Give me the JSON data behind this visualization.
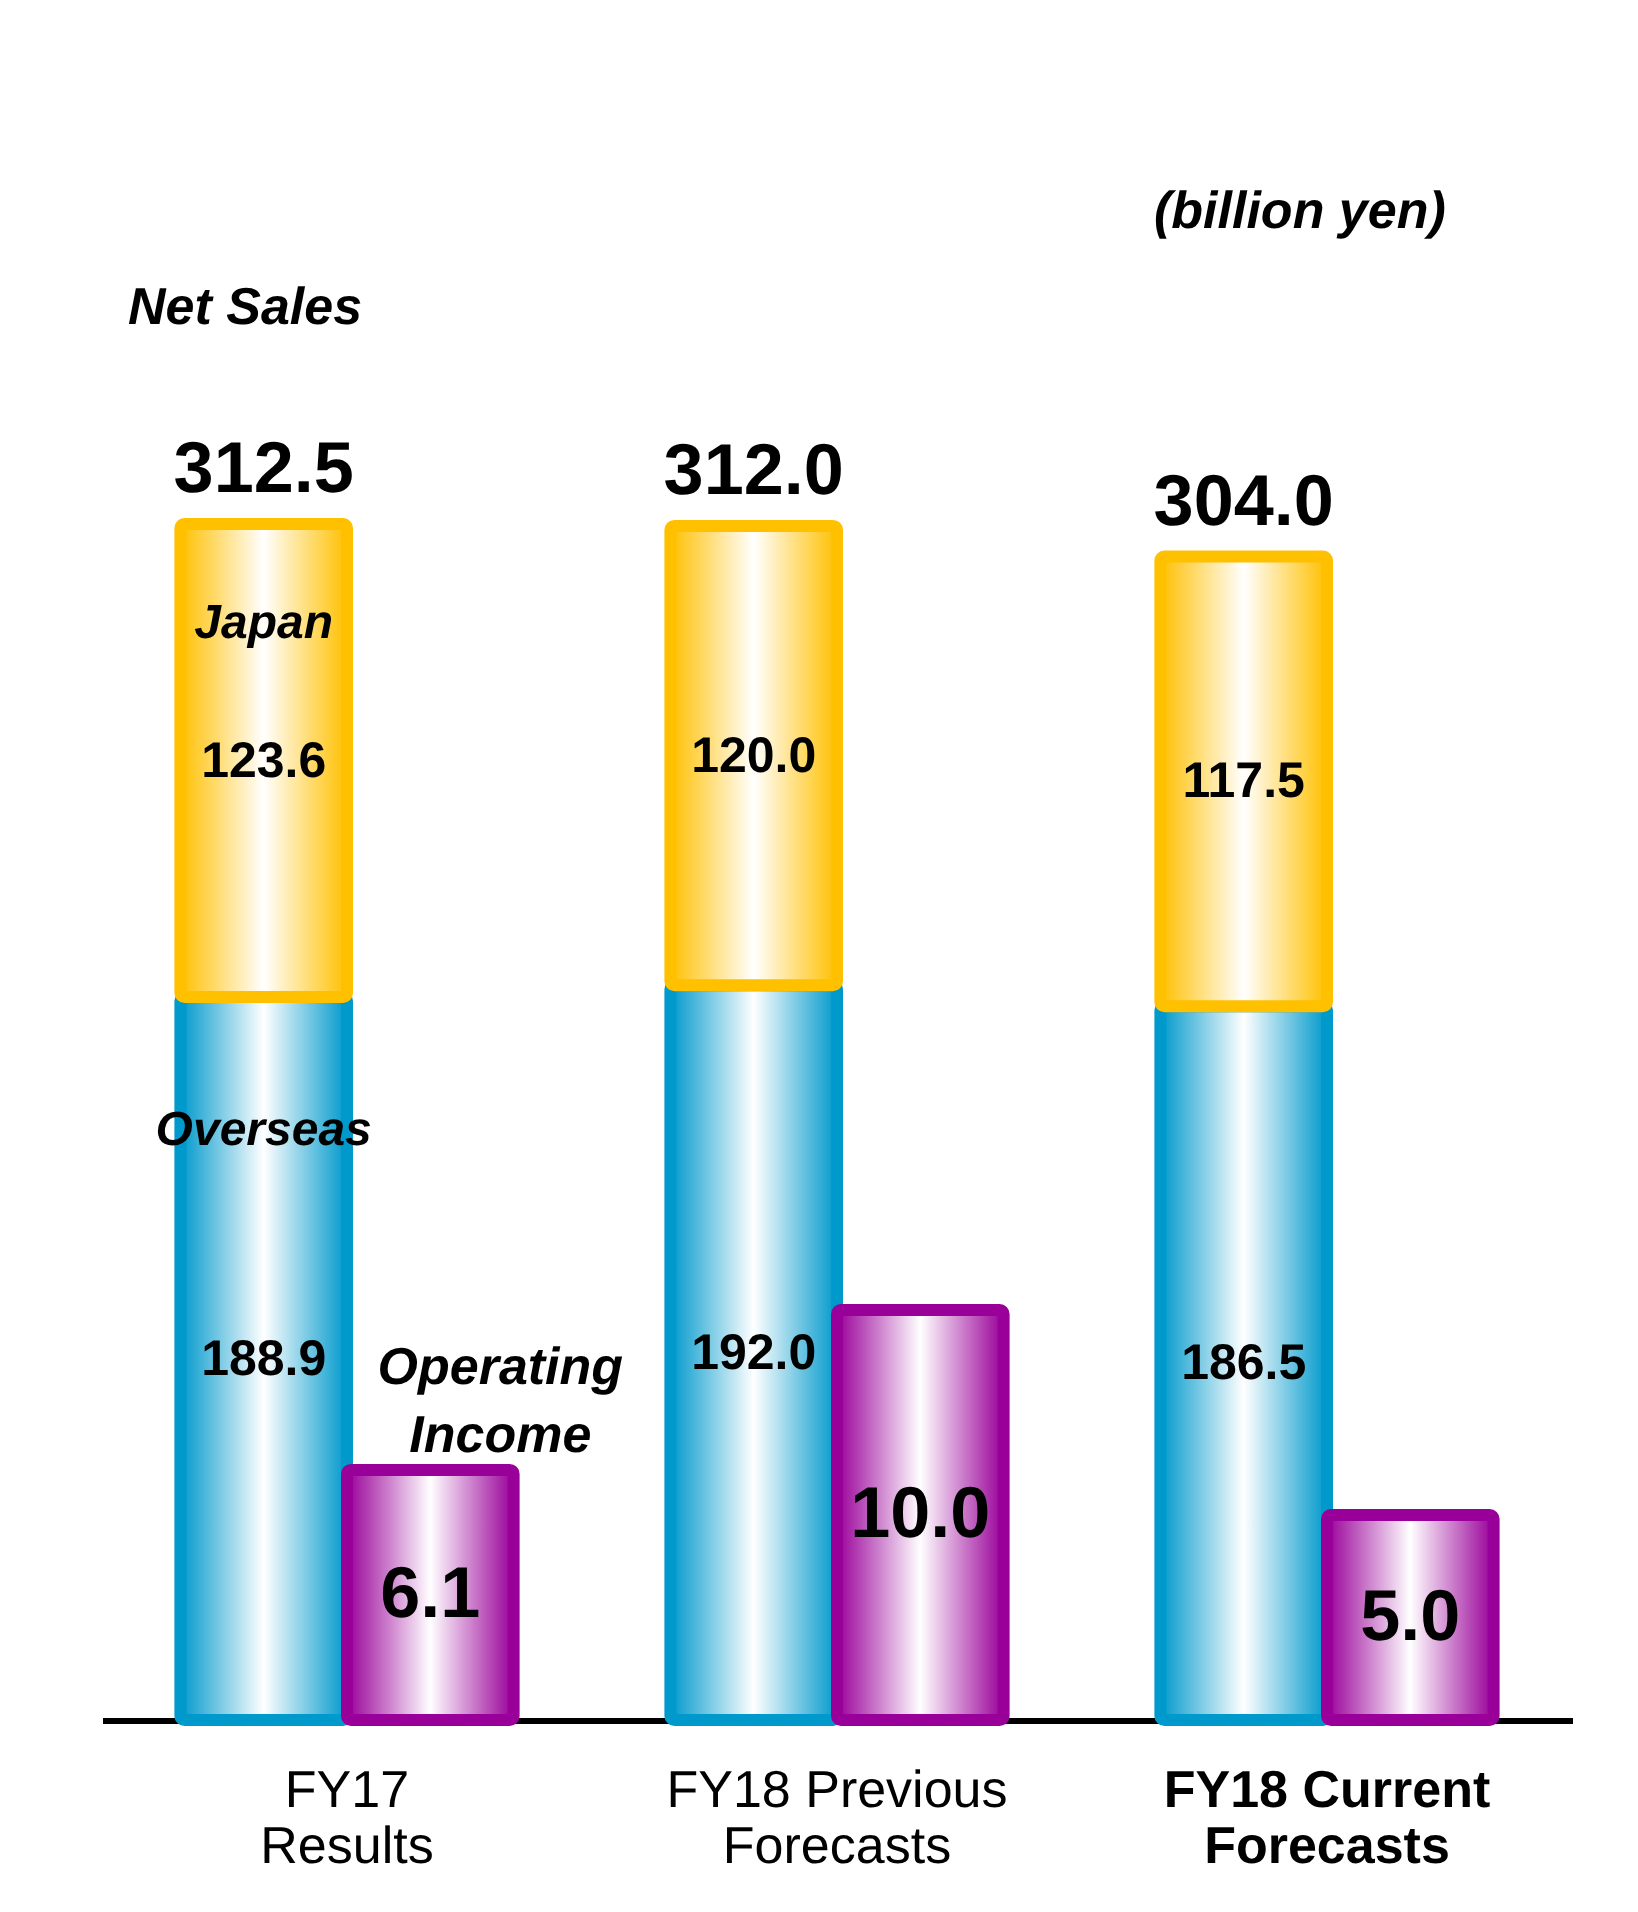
{
  "chart_data": {
    "type": "bar",
    "stacked": true,
    "categories": [
      "FY17 Results",
      "FY18 Previous Forecasts",
      "FY18 Current Forecasts"
    ],
    "series": [
      {
        "name": "Overseas",
        "color": "#0099cc",
        "values": [
          188.9,
          192.0,
          186.5
        ],
        "value_labels": [
          "188.9",
          "192.0",
          "186.5"
        ]
      },
      {
        "name": "Japan",
        "color": "#ffc000",
        "values": [
          123.6,
          120.0,
          117.5
        ],
        "value_labels": [
          "123.6",
          "120.0",
          "117.5"
        ]
      },
      {
        "name": "Operating Income",
        "color": "#990099",
        "values": [
          6.1,
          10.0,
          5.0
        ],
        "value_labels": [
          "6.1",
          "10.0",
          "5.0"
        ],
        "axis": "y2"
      }
    ],
    "totals": [
      "312.5",
      "312.0",
      "304.0"
    ],
    "tick_labels": "x",
    "annotations": [
      "Net Sales",
      "(billion yen)"
    ]
  }
}
